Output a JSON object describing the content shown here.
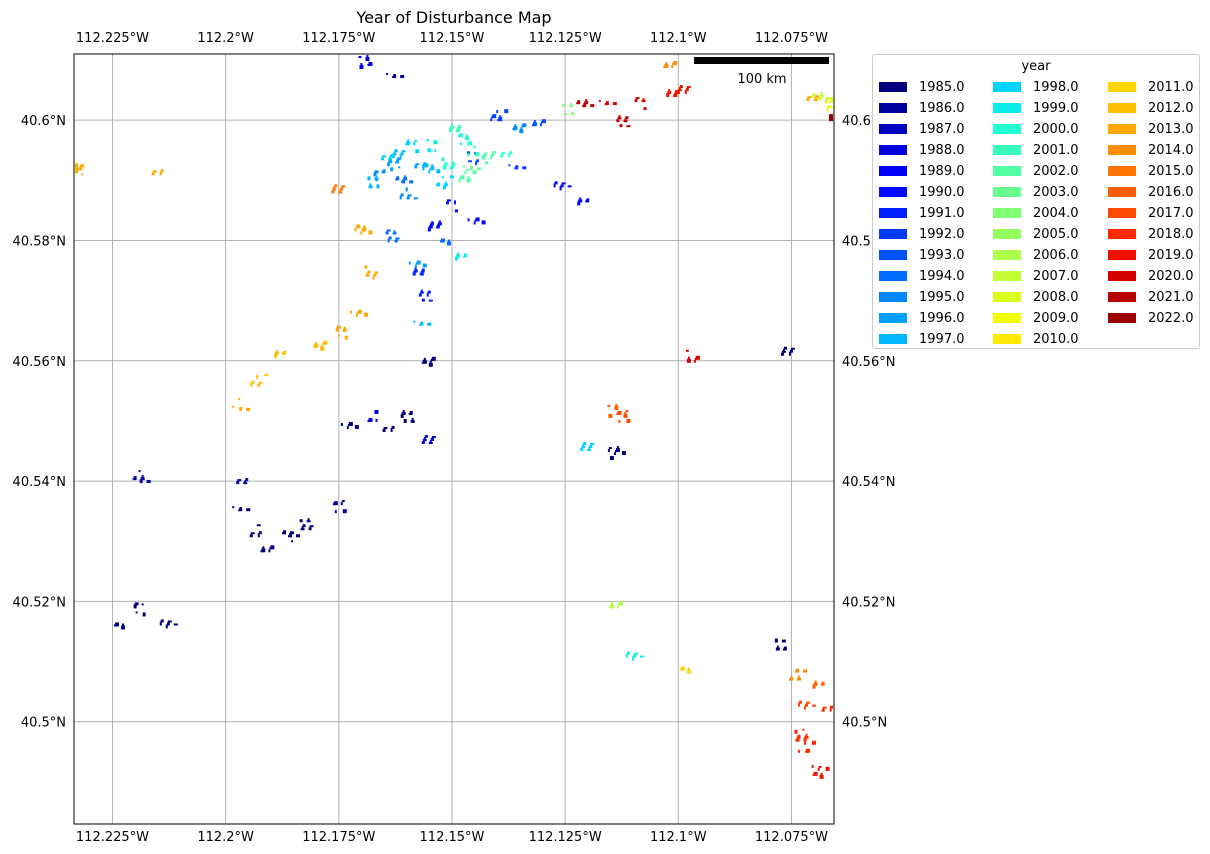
{
  "title": "Year of Disturbance Map",
  "x_ticks": [
    "112.225°W",
    "112.2°W",
    "112.175°W",
    "112.15°W",
    "112.125°W",
    "112.1°W",
    "112.075°W"
  ],
  "x_tick_values": [
    -112.225,
    -112.2,
    -112.175,
    -112.15,
    -112.125,
    -112.1,
    -112.075
  ],
  "y_ticks": [
    "40.6°N",
    "40.58°N",
    "40.56°N",
    "40.54°N",
    "40.52°N",
    "40.5°N"
  ],
  "y_tick_values": [
    40.6,
    40.58,
    40.56,
    40.54,
    40.52,
    40.5
  ],
  "extent": {
    "lon_min": -112.2335,
    "lon_max": -112.0656,
    "lat_min": 40.483,
    "lat_max": 40.611
  },
  "scale_bar": {
    "label": "100 km"
  },
  "legend": {
    "title": "year",
    "entries": [
      {
        "label": "1985.0",
        "color": "#00007f"
      },
      {
        "label": "1986.0",
        "color": "#00009f"
      },
      {
        "label": "1987.0",
        "color": "#0000bf"
      },
      {
        "label": "1988.0",
        "color": "#0000df"
      },
      {
        "label": "1989.0",
        "color": "#0000fa"
      },
      {
        "label": "1990.0",
        "color": "#0008ff"
      },
      {
        "label": "1991.0",
        "color": "#0020ff"
      },
      {
        "label": "1992.0",
        "color": "#003cff"
      },
      {
        "label": "1993.0",
        "color": "#0054ff"
      },
      {
        "label": "1994.0",
        "color": "#006cff"
      },
      {
        "label": "1995.0",
        "color": "#0088ff"
      },
      {
        "label": "1996.0",
        "color": "#00a0ff"
      },
      {
        "label": "1997.0",
        "color": "#00b8ff"
      },
      {
        "label": "1998.0",
        "color": "#00d4ff"
      },
      {
        "label": "1999.0",
        "color": "#0cecee"
      },
      {
        "label": "2000.0",
        "color": "#22ffd4"
      },
      {
        "label": "2001.0",
        "color": "#38ffbe"
      },
      {
        "label": "2002.0",
        "color": "#53ffa4"
      },
      {
        "label": "2003.0",
        "color": "#69ff8d"
      },
      {
        "label": "2004.0",
        "color": "#80ff77"
      },
      {
        "label": "2005.0",
        "color": "#96ff60"
      },
      {
        "label": "2006.0",
        "color": "#adff4a"
      },
      {
        "label": "2007.0",
        "color": "#c3ff33"
      },
      {
        "label": "2008.0",
        "color": "#d9ff1d"
      },
      {
        "label": "2009.0",
        "color": "#f0ff06"
      },
      {
        "label": "2010.0",
        "color": "#ffea00"
      },
      {
        "label": "2011.0",
        "color": "#ffd500"
      },
      {
        "label": "2012.0",
        "color": "#ffbf00"
      },
      {
        "label": "2013.0",
        "color": "#ffa900"
      },
      {
        "label": "2014.0",
        "color": "#ff8c00"
      },
      {
        "label": "2015.0",
        "color": "#ff7600"
      },
      {
        "label": "2016.0",
        "color": "#ff5e00"
      },
      {
        "label": "2017.0",
        "color": "#ff4800"
      },
      {
        "label": "2018.0",
        "color": "#ff2a00"
      },
      {
        "label": "2019.0",
        "color": "#f00f00"
      },
      {
        "label": "2020.0",
        "color": "#d50000"
      },
      {
        "label": "2021.0",
        "color": "#b80000"
      },
      {
        "label": "2022.0",
        "color": "#9a0000"
      }
    ]
  },
  "disturbance_patches": [
    {
      "year": 1985,
      "lon": -112.197,
      "lat": 40.535
    },
    {
      "year": 1985,
      "lon": -112.194,
      "lat": 40.532
    },
    {
      "year": 1985,
      "lon": -112.191,
      "lat": 40.529
    },
    {
      "year": 1985,
      "lon": -112.186,
      "lat": 40.531
    },
    {
      "year": 1985,
      "lon": -112.183,
      "lat": 40.533
    },
    {
      "year": 1985,
      "lon": -112.224,
      "lat": 40.516
    },
    {
      "year": 1985,
      "lon": -112.219,
      "lat": 40.519
    },
    {
      "year": 1985,
      "lon": -112.213,
      "lat": 40.517
    },
    {
      "year": 1985,
      "lon": -112.156,
      "lat": 40.56
    },
    {
      "year": 1985,
      "lon": -112.16,
      "lat": 40.551
    },
    {
      "year": 1985,
      "lon": -112.164,
      "lat": 40.549
    },
    {
      "year": 1985,
      "lon": -112.173,
      "lat": 40.549
    },
    {
      "year": 1985,
      "lon": -112.078,
      "lat": 40.513
    },
    {
      "year": 1985,
      "lon": -112.076,
      "lat": 40.562
    },
    {
      "year": 1985,
      "lon": -112.114,
      "lat": 40.545
    },
    {
      "year": 1986,
      "lon": -112.163,
      "lat": 40.608
    },
    {
      "year": 1986,
      "lon": -112.197,
      "lat": 40.54
    },
    {
      "year": 1986,
      "lon": -112.175,
      "lat": 40.536
    },
    {
      "year": 1986,
      "lon": -112.219,
      "lat": 40.541
    },
    {
      "year": 1988,
      "lon": -112.156,
      "lat": 40.547
    },
    {
      "year": 1988,
      "lon": -112.168,
      "lat": 40.551
    },
    {
      "year": 1989,
      "lon": -112.121,
      "lat": 40.587
    },
    {
      "year": 1989,
      "lon": -112.126,
      "lat": 40.589
    },
    {
      "year": 1989,
      "lon": -112.17,
      "lat": 40.61
    },
    {
      "year": 1990,
      "lon": -112.154,
      "lat": 40.583
    },
    {
      "year": 1990,
      "lon": -112.15,
      "lat": 40.586
    },
    {
      "year": 1990,
      "lon": -112.145,
      "lat": 40.584
    },
    {
      "year": 1991,
      "lon": -112.158,
      "lat": 40.575
    },
    {
      "year": 1991,
      "lon": -112.156,
      "lat": 40.571
    },
    {
      "year": 1992,
      "lon": -112.14,
      "lat": 40.601
    },
    {
      "year": 1992,
      "lon": -112.136,
      "lat": 40.592
    },
    {
      "year": 1993,
      "lon": -112.146,
      "lat": 40.594
    },
    {
      "year": 1993,
      "lon": -112.131,
      "lat": 40.6
    },
    {
      "year": 1994,
      "lon": -112.161,
      "lat": 40.59
    },
    {
      "year": 1994,
      "lon": -112.164,
      "lat": 40.581
    },
    {
      "year": 1994,
      "lon": -112.152,
      "lat": 40.58
    },
    {
      "year": 1995,
      "lon": -112.166,
      "lat": 40.591
    },
    {
      "year": 1995,
      "lon": -112.16,
      "lat": 40.588
    },
    {
      "year": 1995,
      "lon": -112.136,
      "lat": 40.599
    },
    {
      "year": 1996,
      "lon": -112.163,
      "lat": 40.593
    },
    {
      "year": 1996,
      "lon": -112.157,
      "lat": 40.593
    },
    {
      "year": 1996,
      "lon": -112.158,
      "lat": 40.576
    },
    {
      "year": 1997,
      "lon": -112.168,
      "lat": 40.59
    },
    {
      "year": 1997,
      "lon": -112.162,
      "lat": 40.595
    },
    {
      "year": 1997,
      "lon": -112.155,
      "lat": 40.592
    },
    {
      "year": 1997,
      "lon": -112.157,
      "lat": 40.567
    },
    {
      "year": 1998,
      "lon": -112.165,
      "lat": 40.594
    },
    {
      "year": 1998,
      "lon": -112.159,
      "lat": 40.596
    },
    {
      "year": 1998,
      "lon": -112.152,
      "lat": 40.59
    },
    {
      "year": 1998,
      "lon": -112.121,
      "lat": 40.546
    },
    {
      "year": 1999,
      "lon": -112.155,
      "lat": 40.596
    },
    {
      "year": 1999,
      "lon": -112.148,
      "lat": 40.578
    },
    {
      "year": 1999,
      "lon": -112.11,
      "lat": 40.511
    },
    {
      "year": 2000,
      "lon": -112.148,
      "lat": 40.597
    },
    {
      "year": 2000,
      "lon": -112.151,
      "lat": 40.593
    },
    {
      "year": 2000,
      "lon": -112.138,
      "lat": 40.594
    },
    {
      "year": 2001,
      "lon": -112.145,
      "lat": 40.595
    },
    {
      "year": 2001,
      "lon": -112.15,
      "lat": 40.599
    },
    {
      "year": 2002,
      "lon": -112.142,
      "lat": 40.594
    },
    {
      "year": 2002,
      "lon": -112.147,
      "lat": 40.591
    },
    {
      "year": 2003,
      "lon": -112.146,
      "lat": 40.592
    },
    {
      "year": 2004,
      "lon": -112.125,
      "lat": 40.602
    },
    {
      "year": 2006,
      "lon": -112.114,
      "lat": 40.52
    },
    {
      "year": 2007,
      "lon": -112.069,
      "lat": 40.604
    },
    {
      "year": 2008,
      "lon": -112.067,
      "lat": 40.603
    },
    {
      "year": 2011,
      "lon": -112.099,
      "lat": 40.509
    },
    {
      "year": 2012,
      "lon": -112.188,
      "lat": 40.561
    },
    {
      "year": 2012,
      "lon": -112.193,
      "lat": 40.557
    },
    {
      "year": 2012,
      "lon": -112.18,
      "lat": 40.563
    },
    {
      "year": 2013,
      "lon": -112.233,
      "lat": 40.592
    },
    {
      "year": 2013,
      "lon": -112.215,
      "lat": 40.592
    },
    {
      "year": 2013,
      "lon": -112.171,
      "lat": 40.568
    },
    {
      "year": 2013,
      "lon": -112.175,
      "lat": 40.565
    },
    {
      "year": 2013,
      "lon": -112.168,
      "lat": 40.575
    },
    {
      "year": 2013,
      "lon": -112.17,
      "lat": 40.582
    },
    {
      "year": 2013,
      "lon": -112.197,
      "lat": 40.553
    },
    {
      "year": 2013,
      "lon": -112.071,
      "lat": 40.604
    },
    {
      "year": 2014,
      "lon": -112.102,
      "lat": 40.609
    },
    {
      "year": 2014,
      "lon": -112.074,
      "lat": 40.508
    },
    {
      "year": 2015,
      "lon": -112.176,
      "lat": 40.589
    },
    {
      "year": 2016,
      "lon": -112.115,
      "lat": 40.552
    },
    {
      "year": 2016,
      "lon": -112.069,
      "lat": 40.507
    },
    {
      "year": 2017,
      "lon": -112.072,
      "lat": 40.503
    },
    {
      "year": 2017,
      "lon": -112.113,
      "lat": 40.551
    },
    {
      "year": 2018,
      "lon": -112.073,
      "lat": 40.498
    },
    {
      "year": 2018,
      "lon": -112.067,
      "lat": 40.502
    },
    {
      "year": 2018,
      "lon": -112.072,
      "lat": 40.496
    },
    {
      "year": 2019,
      "lon": -112.102,
      "lat": 40.605
    },
    {
      "year": 2019,
      "lon": -112.099,
      "lat": 40.605
    },
    {
      "year": 2019,
      "lon": -112.069,
      "lat": 40.492
    },
    {
      "year": 2020,
      "lon": -112.116,
      "lat": 40.603
    },
    {
      "year": 2020,
      "lon": -112.109,
      "lat": 40.603
    },
    {
      "year": 2020,
      "lon": -112.097,
      "lat": 40.561
    },
    {
      "year": 2021,
      "lon": -112.121,
      "lat": 40.603
    },
    {
      "year": 2021,
      "lon": -112.113,
      "lat": 40.6
    },
    {
      "year": 2022,
      "lon": -112.066,
      "lat": 40.601
    }
  ]
}
